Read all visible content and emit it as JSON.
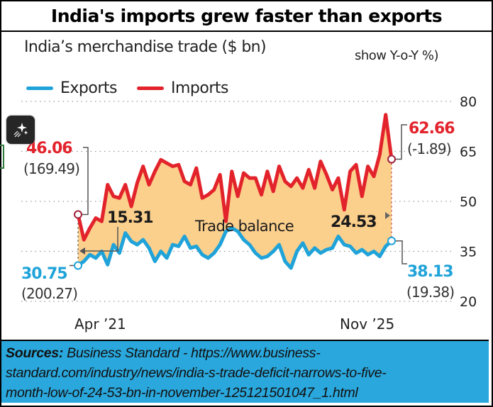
{
  "title": "India's imports grew faster than exports",
  "subtitle": "India’s merchandise trade ($ bn)",
  "subnote": "show Y-o-Y %)",
  "legend": [
    {
      "label": "Exports",
      "color": "#1fa3d9"
    },
    {
      "label": "Imports",
      "color": "#e3232b"
    }
  ],
  "colors": {
    "exports": "#1fa3d9",
    "imports": "#e3232b",
    "fill": "#fbcf8c",
    "grid": "#999999",
    "source_bg": "#2aa7dc"
  },
  "annotations": {
    "imports_start_value": "46.06",
    "imports_start_yoy": "(169.49)",
    "exports_start_value": "30.75",
    "exports_start_yoy": "(200.27)",
    "imports_end_value": "62.66",
    "imports_end_yoy": "(-1.89)",
    "exports_end_value": "38.13",
    "exports_end_yoy": "(19.38)",
    "balance_start": "15.31",
    "balance_end": "24.53",
    "trade_balance_label": "Trade balance"
  },
  "source": {
    "label": "Sources:",
    "text": "Business Standard - https://www.business-standard.com/industry/news/india-s-trade-deficit-narrows-to-five-month-low-of-24-53-bn-in-november-125121501047_1.html",
    "line1": " Business Standard - https://www.business-",
    "line2": "standard.com/industry/news/india-s-trade-deficit-narrows-to-five-",
    "line3": "month-low-of-24-53-bn-in-november-125121501047_1.html"
  },
  "ai_button": {
    "icon": "sparkles-icon"
  },
  "chart_data": {
    "type": "line",
    "title": "India’s merchandise trade ($ bn)",
    "xlabel": "",
    "ylabel": "$ bn",
    "x_tick_labels": [
      "Apr ’21",
      "Nov ’25"
    ],
    "y_ticks": [
      20,
      35,
      50,
      65,
      80
    ],
    "ylim": [
      20,
      80
    ],
    "grid": "horizontal-dotted",
    "legend_position": "top-left",
    "x_start": "Apr 2021",
    "x_end": "Nov 2025",
    "series": [
      {
        "name": "Imports",
        "values": [
          46.06,
          38.5,
          42.0,
          45.0,
          44.0,
          55.0,
          51.5,
          51.0,
          55.0,
          48.5,
          55.5,
          60.5,
          55.0,
          59.0,
          62.5,
          61.5,
          60.5,
          61.0,
          56.0,
          55.0,
          60.0,
          51.0,
          52.0,
          53.5,
          58.0,
          44.0,
          59.0,
          51.5,
          58.5,
          57.0,
          57.0,
          52.0,
          59.0,
          53.0,
          60.5,
          56.0,
          54.5,
          57.0,
          54.0,
          59.5,
          54.0,
          62.0,
          58.0,
          53.5,
          57.0,
          47.5,
          59.0,
          61.0,
          51.5,
          60.5,
          57.5,
          64.0,
          76.0,
          62.66
        ]
      },
      {
        "name": "Exports",
        "values": [
          30.75,
          32.0,
          34.0,
          33.0,
          35.0,
          31.0,
          37.0,
          34.5,
          40.5,
          38.0,
          37.0,
          38.5,
          36.0,
          32.0,
          35.0,
          33.0,
          37.0,
          36.5,
          39.5,
          36.0,
          36.5,
          34.0,
          33.0,
          34.5,
          37.0,
          41.0,
          42.0,
          41.0,
          38.5,
          37.0,
          34.5,
          33.0,
          33.5,
          35.0,
          37.0,
          32.0,
          30.0,
          35.0,
          37.5,
          34.0,
          36.0,
          34.5,
          35.5,
          36.0,
          39.5,
          37.0,
          36.5,
          34.5,
          35.5,
          34.0,
          35.0,
          33.5,
          36.5,
          38.13
        ]
      }
    ],
    "trade_balance": {
      "start": 15.31,
      "end": 24.53,
      "label": "Trade balance"
    },
    "annotations_yoy": {
      "imports_start": 169.49,
      "exports_start": 200.27,
      "imports_end": -1.89,
      "exports_end": 19.38
    }
  }
}
